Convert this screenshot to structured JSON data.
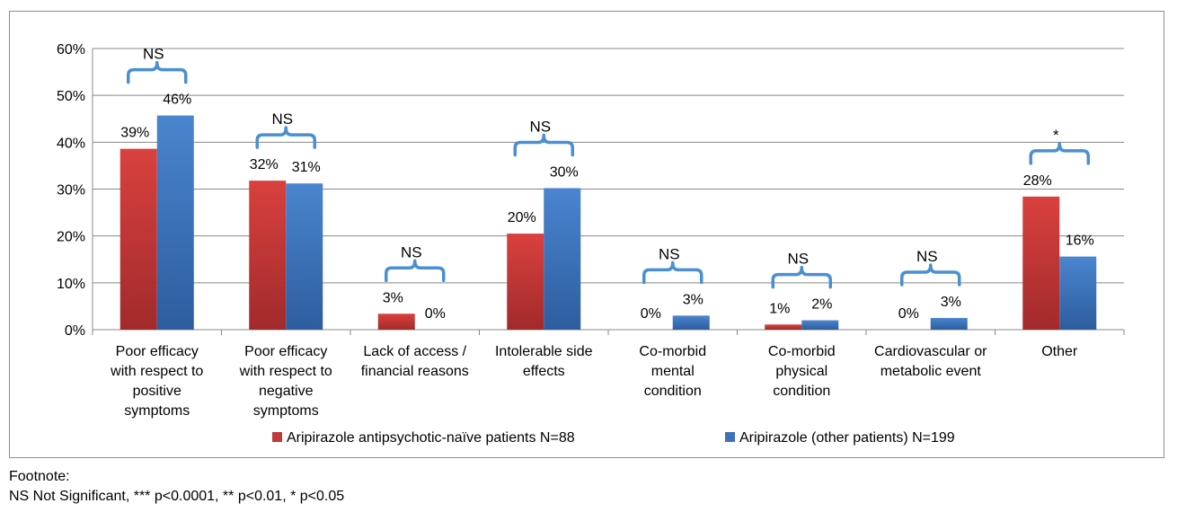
{
  "chart_data": {
    "type": "bar",
    "categories": [
      [
        "Poor efficacy",
        "with respect to",
        "positive",
        "symptoms"
      ],
      [
        "Poor efficacy",
        "with respect to",
        "negative",
        "symptoms"
      ],
      [
        "Lack of access /",
        "financial reasons"
      ],
      [
        "Intolerable side",
        "effects"
      ],
      [
        "Co-morbid",
        "mental",
        "condition"
      ],
      [
        "Co-morbid",
        "physical",
        "condition"
      ],
      [
        "Cardiovascular or",
        "metabolic event"
      ],
      [
        "Other"
      ]
    ],
    "series": [
      {
        "name": "Aripirazole antipsychotic-naïve patients N=88",
        "values": [
          38.6,
          31.8,
          3.4,
          20.5,
          0,
          1.1,
          0,
          28.4
        ],
        "labels": [
          "39%",
          "32%",
          "3%",
          "20%",
          "0%",
          "1%",
          "0%",
          "28%"
        ]
      },
      {
        "name": "Aripirazole (other patients) N=199",
        "values": [
          45.7,
          31.2,
          0,
          30.2,
          3.0,
          2.0,
          2.5,
          15.6
        ],
        "labels": [
          "46%",
          "31%",
          "0%",
          "30%",
          "3%",
          "2%",
          "3%",
          "16%"
        ]
      }
    ],
    "significance": [
      "NS",
      "NS",
      "NS",
      "NS",
      "NS",
      "NS",
      "NS",
      "*"
    ],
    "yticks": [
      "0%",
      "10%",
      "20%",
      "30%",
      "40%",
      "50%",
      "60%"
    ],
    "ylim": [
      0,
      60
    ],
    "grid": true,
    "legend_position": "bottom",
    "colors": {
      "series1": "#c0393b",
      "series2": "#3d72bb",
      "bracket": "#4a8fd1",
      "grid": "#888888"
    },
    "title": "",
    "xlabel": "",
    "ylabel": ""
  },
  "footnote": {
    "heading": "Footnote:",
    "text": "NS Not Significant, *** p<0.0001, ** p<0.01, * p<0.05"
  }
}
